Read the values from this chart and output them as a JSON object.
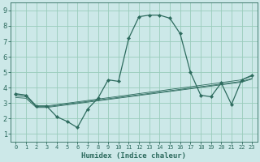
{
  "xlabel": "Humidex (Indice chaleur)",
  "background_color": "#cce8e8",
  "grid_color": "#99ccbb",
  "line_color": "#2d6b5e",
  "xlim": [
    -0.5,
    23.5
  ],
  "ylim": [
    0.5,
    9.5
  ],
  "xticks": [
    0,
    1,
    2,
    3,
    4,
    5,
    6,
    7,
    8,
    9,
    10,
    11,
    12,
    13,
    14,
    15,
    16,
    17,
    18,
    19,
    20,
    21,
    22,
    23
  ],
  "yticks": [
    1,
    2,
    3,
    4,
    5,
    6,
    7,
    8,
    9
  ],
  "main_x": [
    0,
    1,
    2,
    3,
    4,
    5,
    6,
    7,
    8,
    9,
    10,
    11,
    12,
    13,
    14,
    15,
    16,
    17,
    18,
    19,
    20,
    21,
    22,
    23
  ],
  "main_y": [
    3.6,
    3.5,
    2.8,
    2.8,
    2.1,
    1.8,
    1.4,
    2.6,
    3.3,
    4.5,
    4.4,
    7.2,
    8.6,
    8.7,
    8.7,
    8.5,
    7.5,
    5.0,
    3.5,
    3.4,
    4.3,
    2.9,
    4.5,
    4.8
  ],
  "trend_lines": [
    {
      "x": [
        0,
        1,
        2,
        3,
        22,
        23
      ],
      "y": [
        3.55,
        3.5,
        2.8,
        2.8,
        4.5,
        4.75
      ]
    },
    {
      "x": [
        0,
        1,
        2,
        3,
        22,
        23
      ],
      "y": [
        3.45,
        3.4,
        2.75,
        2.75,
        4.4,
        4.6
      ]
    },
    {
      "x": [
        0,
        1,
        2,
        3,
        22,
        23
      ],
      "y": [
        3.35,
        3.3,
        2.7,
        2.7,
        4.35,
        4.55
      ]
    }
  ],
  "xlabel_fontsize": 6.5,
  "xlabel_fontweight": "bold",
  "tick_fontsize_x": 5.0,
  "tick_fontsize_y": 6.0,
  "line_width": 0.9,
  "marker_size": 2.2,
  "trend_lw": 0.6
}
